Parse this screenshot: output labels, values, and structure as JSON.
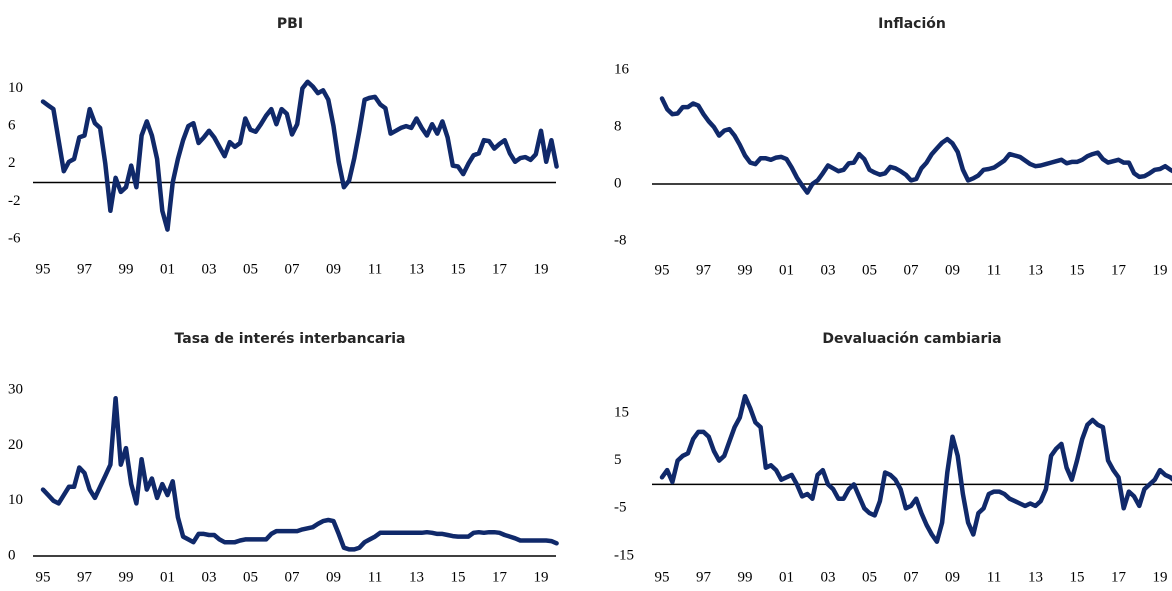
{
  "chart_data": [
    {
      "type": "line",
      "title": "PBI",
      "color": "#10296a",
      "grid": false,
      "ylim": [
        -6,
        11
      ],
      "yticks": [
        10,
        6,
        2,
        -2,
        -6
      ],
      "categories": [
        "95",
        null,
        null,
        null,
        null,
        null,
        null,
        null,
        "97",
        null,
        null,
        null,
        null,
        null,
        null,
        null,
        "99",
        null,
        null,
        null,
        null,
        null,
        null,
        null,
        "01",
        null,
        null,
        null,
        null,
        null,
        null,
        null,
        "03",
        null,
        null,
        null,
        null,
        null,
        null,
        null,
        "05",
        null,
        null,
        null,
        null,
        null,
        null,
        null,
        "07",
        null,
        null,
        null,
        null,
        null,
        null,
        null,
        "09",
        null,
        null,
        null,
        null,
        null,
        null,
        null,
        "11",
        null,
        null,
        null,
        null,
        null,
        null,
        null,
        "13",
        null,
        null,
        null,
        null,
        null,
        null,
        null,
        "15",
        null,
        null,
        null,
        null,
        null,
        null,
        null,
        "17",
        null,
        null,
        null,
        null,
        null,
        null,
        null,
        "19",
        null,
        null,
        null
      ],
      "values": [
        8.6,
        8.2,
        7.8,
        4.5,
        1.2,
        2.2,
        2.5,
        4.8,
        5.0,
        7.8,
        6.3,
        5.8,
        2.0,
        -3.0,
        0.5,
        -1.0,
        -0.5,
        1.8,
        -0.5,
        5.0,
        6.5,
        5.0,
        2.5,
        -3.0,
        -5.0,
        0.0,
        2.5,
        4.5,
        6.0,
        6.3,
        4.2,
        4.8,
        5.5,
        4.8,
        3.8,
        2.8,
        4.3,
        3.8,
        4.2,
        6.8,
        5.6,
        5.4,
        6.2,
        7.1,
        7.8,
        6.2,
        7.8,
        7.3,
        5.1,
        6.2,
        10.0,
        10.7,
        10.2,
        9.5,
        9.8,
        8.8,
        6.0,
        2.2,
        -0.5,
        0.2,
        2.6,
        5.5,
        8.8,
        9.0,
        9.1,
        8.3,
        7.9,
        5.2,
        5.5,
        5.8,
        6.0,
        5.8,
        6.8,
        5.8,
        5.0,
        6.2,
        5.2,
        6.5,
        4.8,
        1.8,
        1.7,
        0.9,
        2.0,
        2.9,
        3.1,
        4.5,
        4.4,
        3.6,
        4.1,
        4.5,
        3.1,
        2.2,
        2.6,
        2.7,
        2.4,
        3.0,
        5.5,
        2.2,
        4.5,
        1.7
      ]
    },
    {
      "type": "line",
      "title": "Inflación",
      "color": "#10296a",
      "grid": false,
      "ylim": [
        -8,
        16
      ],
      "yticks": [
        16,
        8,
        0,
        -8
      ],
      "categories": [
        "95",
        null,
        null,
        null,
        null,
        null,
        null,
        null,
        "97",
        null,
        null,
        null,
        null,
        null,
        null,
        null,
        "99",
        null,
        null,
        null,
        null,
        null,
        null,
        null,
        "01",
        null,
        null,
        null,
        null,
        null,
        null,
        null,
        "03",
        null,
        null,
        null,
        null,
        null,
        null,
        null,
        "05",
        null,
        null,
        null,
        null,
        null,
        null,
        null,
        "07",
        null,
        null,
        null,
        null,
        null,
        null,
        null,
        "09",
        null,
        null,
        null,
        null,
        null,
        null,
        null,
        "11",
        null,
        null,
        null,
        null,
        null,
        null,
        null,
        "13",
        null,
        null,
        null,
        null,
        null,
        null,
        null,
        "15",
        null,
        null,
        null,
        null,
        null,
        null,
        null,
        "17",
        null,
        null,
        null,
        null,
        null,
        null,
        null,
        "19",
        null,
        null,
        null
      ],
      "values": [
        12,
        10.5,
        9.8,
        9.9,
        10.8,
        10.8,
        11.3,
        11,
        9.8,
        8.8,
        8.0,
        6.8,
        7.5,
        7.7,
        6.8,
        5.5,
        4.0,
        3.0,
        2.8,
        3.6,
        3.6,
        3.4,
        3.7,
        3.8,
        3.5,
        2.3,
        0.9,
        -0.2,
        -1.2,
        0.0,
        0.5,
        1.5,
        2.6,
        2.2,
        1.8,
        2.0,
        2.9,
        3.0,
        4.2,
        3.5,
        2.0,
        1.6,
        1.3,
        1.5,
        2.4,
        2.2,
        1.8,
        1.3,
        0.5,
        0.7,
        2.2,
        3.0,
        4.2,
        5.0,
        5.8,
        6.3,
        5.7,
        4.5,
        2.0,
        0.5,
        0.8,
        1.2,
        2.0,
        2.1,
        2.3,
        2.8,
        3.3,
        4.2,
        4.0,
        3.8,
        3.3,
        2.8,
        2.5,
        2.6,
        2.8,
        3.0,
        3.2,
        3.4,
        2.9,
        3.1,
        3.1,
        3.4,
        3.9,
        4.2,
        4.4,
        3.5,
        3.0,
        3.2,
        3.4,
        3.0,
        3.0,
        1.5,
        1.0,
        1.1,
        1.5,
        2.0,
        2.1,
        2.5,
        2.0,
        1.6
      ]
    },
    {
      "type": "line",
      "title": "Tasa de interés interbancaria",
      "color": "#10296a",
      "grid": false,
      "ylim": [
        0,
        30
      ],
      "yticks": [
        30,
        20,
        10,
        0
      ],
      "categories": [
        "95",
        null,
        null,
        null,
        null,
        null,
        null,
        null,
        "97",
        null,
        null,
        null,
        null,
        null,
        null,
        null,
        "99",
        null,
        null,
        null,
        null,
        null,
        null,
        null,
        "01",
        null,
        null,
        null,
        null,
        null,
        null,
        null,
        "03",
        null,
        null,
        null,
        null,
        null,
        null,
        null,
        "05",
        null,
        null,
        null,
        null,
        null,
        null,
        null,
        "07",
        null,
        null,
        null,
        null,
        null,
        null,
        null,
        "09",
        null,
        null,
        null,
        null,
        null,
        null,
        null,
        "11",
        null,
        null,
        null,
        null,
        null,
        null,
        null,
        "13",
        null,
        null,
        null,
        null,
        null,
        null,
        null,
        "15",
        null,
        null,
        null,
        null,
        null,
        null,
        null,
        "17",
        null,
        null,
        null,
        null,
        null,
        null,
        null,
        "19",
        null,
        null,
        null
      ],
      "values": [
        12,
        11,
        10,
        9.5,
        11,
        12.5,
        12.5,
        16,
        15,
        12,
        10.5,
        12.5,
        14.5,
        16.5,
        28.5,
        16.5,
        19.5,
        13,
        9.5,
        17.5,
        12,
        14,
        10.5,
        13,
        11,
        13.5,
        7,
        3.5,
        3,
        2.5,
        4,
        4,
        3.8,
        3.8,
        3,
        2.5,
        2.5,
        2.5,
        2.8,
        3.0,
        3.0,
        3.0,
        3.0,
        3.0,
        4.0,
        4.5,
        4.5,
        4.5,
        4.5,
        4.5,
        4.8,
        5,
        5.2,
        5.8,
        6.3,
        6.5,
        6.3,
        4.0,
        1.5,
        1.2,
        1.2,
        1.5,
        2.5,
        3.0,
        3.5,
        4.2,
        4.2,
        4.2,
        4.2,
        4.2,
        4.2,
        4.2,
        4.2,
        4.2,
        4.3,
        4.2,
        4.0,
        4.0,
        3.8,
        3.6,
        3.5,
        3.5,
        3.5,
        4.2,
        4.3,
        4.2,
        4.3,
        4.3,
        4.2,
        3.8,
        3.5,
        3.2,
        2.8,
        2.8,
        2.8,
        2.8,
        2.8,
        2.8,
        2.7,
        2.3
      ]
    },
    {
      "type": "line",
      "title": "Devaluación cambiaria",
      "color": "#10296a",
      "grid": false,
      "ylim": [
        -15,
        20
      ],
      "yticks": [
        15,
        5,
        -5,
        -15
      ],
      "categories": [
        "95",
        null,
        null,
        null,
        null,
        null,
        null,
        null,
        "97",
        null,
        null,
        null,
        null,
        null,
        null,
        null,
        "99",
        null,
        null,
        null,
        null,
        null,
        null,
        null,
        "01",
        null,
        null,
        null,
        null,
        null,
        null,
        null,
        "03",
        null,
        null,
        null,
        null,
        null,
        null,
        null,
        "05",
        null,
        null,
        null,
        null,
        null,
        null,
        null,
        "07",
        null,
        null,
        null,
        null,
        null,
        null,
        null,
        "09",
        null,
        null,
        null,
        null,
        null,
        null,
        null,
        "11",
        null,
        null,
        null,
        null,
        null,
        null,
        null,
        "13",
        null,
        null,
        null,
        null,
        null,
        null,
        null,
        "15",
        null,
        null,
        null,
        null,
        null,
        null,
        null,
        "17",
        null,
        null,
        null,
        null,
        null,
        null,
        null,
        "19",
        null,
        null,
        null
      ],
      "values": [
        1.5,
        3,
        0.5,
        5,
        6,
        6.5,
        9.5,
        11,
        11,
        10,
        7,
        5,
        6,
        9,
        12,
        14,
        18.5,
        16,
        13,
        12,
        3.5,
        4,
        3,
        1,
        1.5,
        2,
        0,
        -2.5,
        -2,
        -3,
        2,
        3,
        0,
        -1,
        -3,
        -3,
        -1,
        0,
        -2.5,
        -5,
        -6,
        -6.5,
        -3.5,
        2.5,
        2,
        1,
        -1,
        -5,
        -4.5,
        -3,
        -6,
        -8.5,
        -10.5,
        -12,
        -8,
        2.5,
        10,
        6,
        -2,
        -8,
        -10.5,
        -6,
        -5,
        -2,
        -1.5,
        -1.5,
        -2,
        -3,
        -3.5,
        -4,
        -4.5,
        -4,
        -4.5,
        -3.5,
        -1,
        6,
        7.5,
        8.5,
        3.5,
        1,
        5,
        9.5,
        12.5,
        13.5,
        12.5,
        12,
        5,
        3,
        1.5,
        -5,
        -1.5,
        -2.5,
        -4.5,
        -1,
        0,
        1,
        3,
        2,
        1.5,
        0.5
      ]
    }
  ]
}
